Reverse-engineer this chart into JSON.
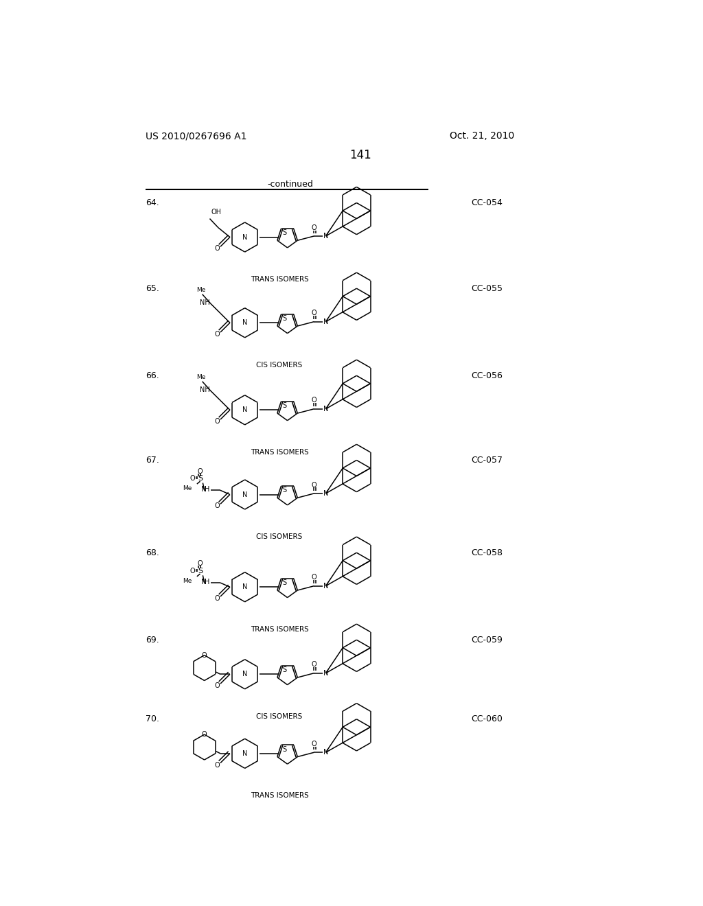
{
  "page_header_left": "US 2010/0267696 A1",
  "page_header_right": "Oct. 21, 2010",
  "page_number": "141",
  "continued_text": "-continued",
  "background_color": "#ffffff",
  "entries": [
    {
      "number": "64.",
      "code": "CC-054",
      "label": "TRANS ISOMERS",
      "left_type": "hydroxy"
    },
    {
      "number": "65.",
      "code": "CC-055",
      "label": "CIS ISOMERS",
      "left_type": "methylamino"
    },
    {
      "number": "66.",
      "code": "CC-056",
      "label": "TRANS ISOMERS",
      "left_type": "methylamino"
    },
    {
      "number": "67.",
      "code": "CC-057",
      "label": "CIS ISOMERS",
      "left_type": "sulfonamide"
    },
    {
      "number": "68.",
      "code": "CC-058",
      "label": "TRANS ISOMERS",
      "left_type": "sulfonamide"
    },
    {
      "number": "69.",
      "code": "CC-059",
      "label": "CIS ISOMERS",
      "left_type": "morpholine"
    },
    {
      "number": "70.",
      "code": "CC-060",
      "label": "TRANS ISOMERS",
      "left_type": "morpholine"
    }
  ],
  "header_fontsize": 10,
  "number_fontsize": 9,
  "code_fontsize": 9,
  "label_fontsize": 7.5,
  "page_num_fontsize": 12
}
